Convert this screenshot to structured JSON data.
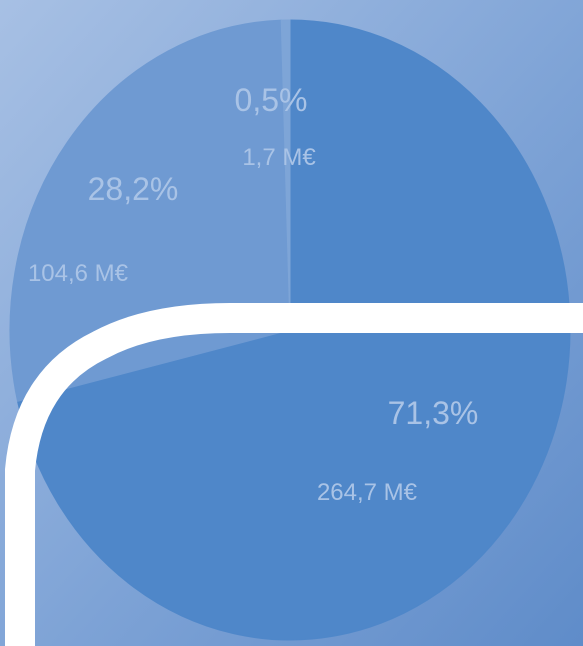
{
  "chart_data": {
    "type": "pie",
    "series": [
      {
        "values": [
          71.3,
          28.2,
          0.5
        ],
        "percent_labels": [
          "71,3%",
          "28,2%",
          "0,5%"
        ],
        "amount_labels": [
          "264,7 M€",
          "104,6 M€",
          "1,7 M€"
        ],
        "colors": [
          "#4f87c9",
          "#6f9ad2",
          "#7ea5d7"
        ]
      }
    ]
  },
  "colors": {
    "background": "#6d95cd",
    "label_text": "#a9c3e6",
    "overlay_band": "#ffffff"
  }
}
